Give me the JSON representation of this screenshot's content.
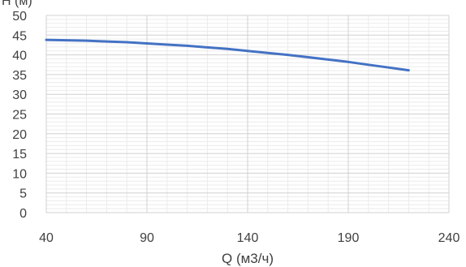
{
  "chart_data": {
    "type": "line",
    "ylabel": "H (м)",
    "xlabel": "Q (м3/ч)",
    "xlim": [
      40,
      240
    ],
    "ylim": [
      0,
      50
    ],
    "x_ticks": [
      40,
      90,
      140,
      190,
      240
    ],
    "y_ticks": [
      0,
      5,
      10,
      15,
      20,
      25,
      30,
      35,
      40,
      45,
      50
    ],
    "x_tick_labels": [
      "40",
      "90",
      "140",
      "190",
      "240"
    ],
    "y_tick_labels": [
      "0",
      "5",
      "10",
      "15",
      "20",
      "25",
      "30",
      "35",
      "40",
      "45",
      "50"
    ],
    "major_grid": true,
    "minor_grid": true,
    "series": [
      {
        "color": "#4472C4",
        "x": [
          40,
          50,
          60,
          70,
          80,
          90,
          100,
          110,
          120,
          130,
          140,
          150,
          160,
          170,
          180,
          190,
          200,
          210,
          220
        ],
        "y": [
          43.8,
          43.7,
          43.6,
          43.4,
          43.2,
          42.9,
          42.6,
          42.3,
          41.9,
          41.5,
          41.0,
          40.5,
          40.0,
          39.4,
          38.8,
          38.2,
          37.5,
          36.8,
          36.1
        ]
      }
    ]
  }
}
